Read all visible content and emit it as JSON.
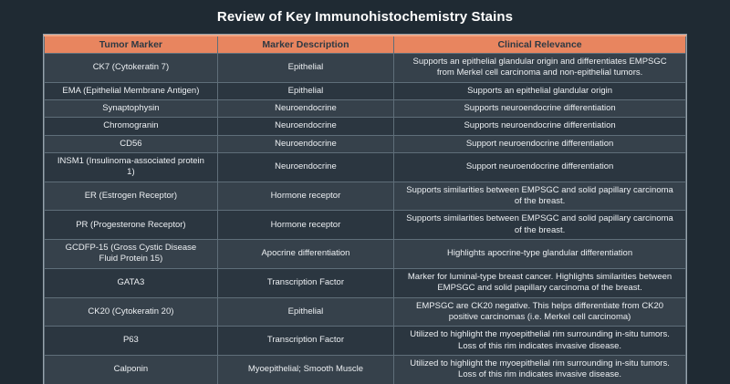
{
  "title": "Review of Key Immunohistochemistry Stains",
  "colors": {
    "page_bg": "#1F2A33",
    "header_bg": "#E8855F",
    "header_top_edge": "#F0A583",
    "header_text": "#2E3943",
    "row_odd_bg": "#36414B",
    "row_even_bg": "#2B3640",
    "cell_text": "#ECEFF2",
    "grid_line": "#5F6E79",
    "outer_border": "#97A2AB"
  },
  "table": {
    "headers": [
      "Tumor Marker",
      "Marker Description",
      "Clinical Relevance"
    ],
    "rows": [
      {
        "marker": "CK7 (Cytokeratin 7)",
        "description": "Epithelial",
        "relevance": "Supports an epithelial glandular origin and differentiates EMPSGC from Merkel cell carcinoma and non-epithelial tumors."
      },
      {
        "marker": "EMA (Epithelial Membrane Antigen)",
        "description": "Epithelial",
        "relevance": "Supports an epithelial glandular origin"
      },
      {
        "marker": "Synaptophysin",
        "description": "Neuroendocrine",
        "relevance": "Supports neuroendocrine differentiation"
      },
      {
        "marker": "Chromogranin",
        "description": "Neuroendocrine",
        "relevance": "Supports neuroendocrine differentiation"
      },
      {
        "marker": "CD56",
        "description": "Neuroendocrine",
        "relevance": "Support neuroendocrine differentiation"
      },
      {
        "marker": "INSM1 (Insulinoma-associated protein 1)",
        "description": "Neuroendocrine",
        "relevance": "Support neuroendocrine differentiation"
      },
      {
        "marker": "ER (Estrogen Receptor)",
        "description": "Hormone receptor",
        "relevance": "Supports similarities between EMPSGC and solid papillary carcinoma of the breast."
      },
      {
        "marker": "PR (Progesterone Receptor)",
        "description": "Hormone receptor",
        "relevance": "Supports similarities between EMPSGC and solid papillary carcinoma of the breast."
      },
      {
        "marker": "GCDFP-15 (Gross Cystic Disease Fluid Protein 15)",
        "description": "Apocrine differentiation",
        "relevance": "Highlights apocrine-type glandular differentiation"
      },
      {
        "marker": "GATA3",
        "description": "Transcription Factor",
        "relevance": "Marker for luminal-type breast cancer. Highlights similarities between EMPSGC and solid papillary carcinoma of the breast."
      },
      {
        "marker": "CK20 (Cytokeratin 20)",
        "description": "Epithelial",
        "relevance": "EMPSGC are CK20 negative. This helps differentiate from CK20 positive carcinomas (i.e. Merkel cell carcinoma)"
      },
      {
        "marker": "P63",
        "description": "Transcription Factor",
        "relevance": "Utilized to highlight the myoepithelial rim surrounding in-situ tumors. Loss of this rim indicates invasive disease."
      },
      {
        "marker": "Calponin",
        "description": "Myoepithelial; Smooth Muscle",
        "relevance": "Utilized to highlight the myoepithelial rim surrounding in-situ tumors. Loss of this rim indicates invasive disease."
      }
    ]
  }
}
